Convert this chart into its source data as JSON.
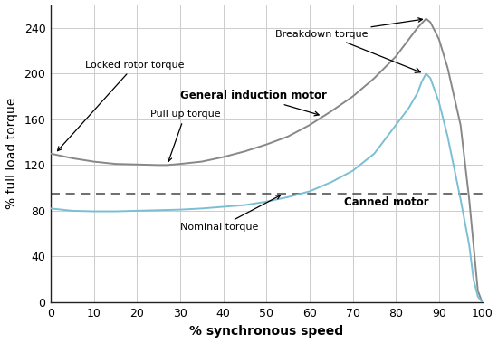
{
  "general_motor_x": [
    0,
    5,
    10,
    15,
    20,
    25,
    27,
    30,
    35,
    40,
    45,
    50,
    55,
    60,
    65,
    70,
    75,
    80,
    85,
    87,
    88,
    90,
    92,
    95,
    97,
    98,
    99,
    100
  ],
  "general_motor_y": [
    130,
    126,
    123,
    121,
    120.5,
    120,
    120,
    121,
    123,
    127,
    132,
    138,
    145,
    155,
    167,
    180,
    196,
    215,
    240,
    248,
    245,
    230,
    205,
    155,
    90,
    50,
    10,
    0
  ],
  "canned_motor_x": [
    0,
    5,
    10,
    15,
    20,
    25,
    30,
    35,
    40,
    45,
    50,
    55,
    60,
    65,
    70,
    75,
    80,
    83,
    85,
    86,
    87,
    88,
    90,
    92,
    95,
    97,
    98,
    99,
    100
  ],
  "canned_motor_y": [
    82,
    80,
    79.5,
    79.5,
    80,
    80.5,
    81,
    82,
    83.5,
    85,
    88,
    92,
    97,
    105,
    115,
    130,
    155,
    170,
    183,
    193,
    200,
    196,
    175,
    145,
    90,
    50,
    20,
    5,
    0
  ],
  "nominal_torque_y": 95,
  "general_color": "#888888",
  "canned_color": "#7bbfd4",
  "nominal_color": "#555555",
  "background_color": "#ffffff",
  "grid_color": "#cccccc",
  "xlabel": "% synchronous speed",
  "ylabel": "% full load torque",
  "xlim": [
    0,
    100
  ],
  "ylim": [
    0,
    260
  ],
  "xticks": [
    0,
    10,
    20,
    30,
    40,
    50,
    60,
    70,
    80,
    90,
    100
  ],
  "yticks": [
    0,
    40,
    80,
    120,
    160,
    200,
    240
  ],
  "general_lw": 1.4,
  "canned_lw": 1.4,
  "figsize": [
    5.5,
    3.79
  ],
  "dpi": 100
}
